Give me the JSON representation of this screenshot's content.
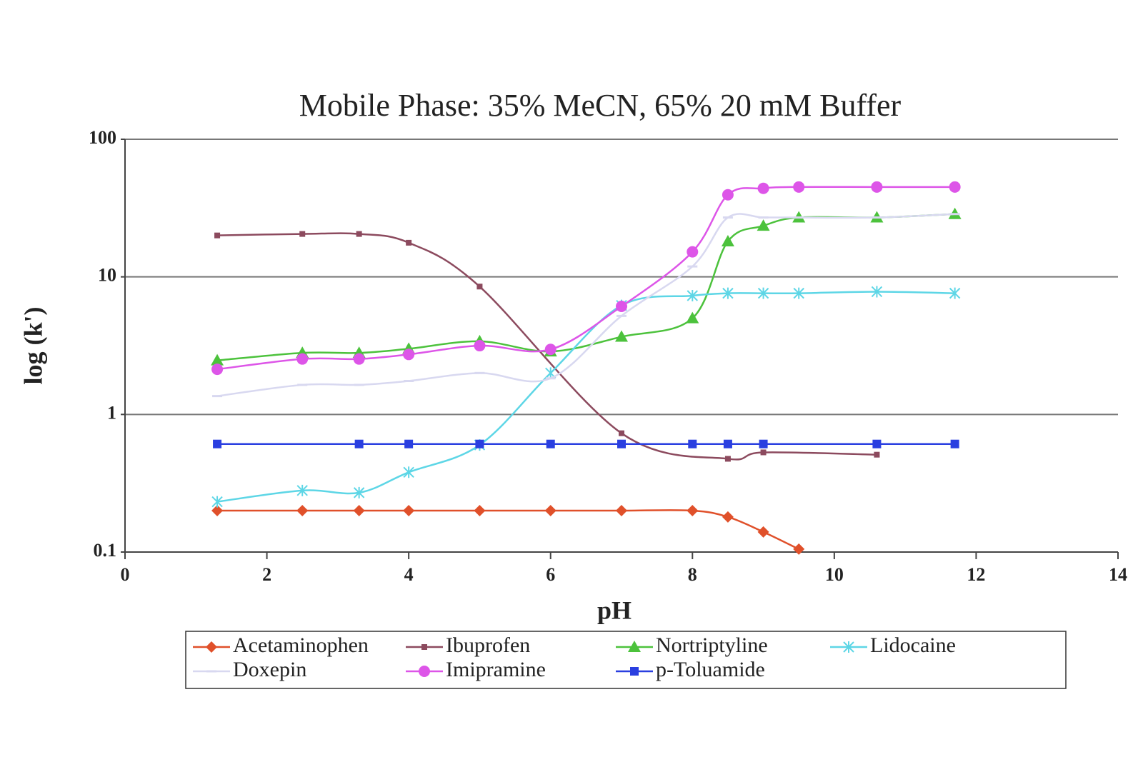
{
  "chart_data": {
    "type": "line",
    "title": "Mobile Phase: 35% MeCN, 65% 20 mM Buffer",
    "x_label": "pH",
    "y_label": "log (k')",
    "xlim": [
      0,
      14
    ],
    "xticks": [
      0,
      2,
      4,
      6,
      8,
      10,
      12,
      14
    ],
    "ylim": [
      0.1,
      100
    ],
    "yticks": [
      0.1,
      1,
      10,
      100
    ],
    "yscale": "log",
    "grid": true,
    "legend": "bottom",
    "series": [
      {
        "name": "Acetaminophen",
        "color": "#e0502a",
        "marker": "diamond",
        "x": [
          1.3,
          2.5,
          3.3,
          4,
          5,
          6,
          7,
          8,
          8.5,
          9,
          9.5
        ],
        "values": [
          0.2,
          0.2,
          0.2,
          0.2,
          0.2,
          0.2,
          0.2,
          0.2,
          0.18,
          0.14,
          0.105
        ]
      },
      {
        "name": "Ibuprofen",
        "color": "#8c4a5e",
        "marker": "square-small",
        "x": [
          1.3,
          2.5,
          3.3,
          4,
          5,
          7,
          8.5,
          9,
          10.6
        ],
        "values": [
          20,
          20.5,
          20.5,
          17.7,
          8.5,
          0.73,
          0.476,
          0.53,
          0.51
        ]
      },
      {
        "name": "Nortriptyline",
        "color": "#4cc23c",
        "marker": "triangle",
        "x": [
          1.3,
          2.5,
          3.3,
          4,
          5,
          6,
          7,
          8,
          8.5,
          9,
          9.5,
          10.6,
          11.7
        ],
        "values": [
          2.47,
          2.8,
          2.8,
          3.0,
          3.4,
          2.87,
          3.67,
          5,
          18.1,
          23.5,
          27,
          27,
          28.6
        ]
      },
      {
        "name": "Lidocaine",
        "color": "#5dd6e6",
        "marker": "cross",
        "x": [
          1.3,
          2.5,
          3.3,
          4,
          5,
          6,
          7,
          8,
          8.5,
          9,
          9.5,
          10.6,
          11.7
        ],
        "values": [
          0.232,
          0.28,
          0.27,
          0.38,
          0.6,
          2.0,
          6.2,
          7.3,
          7.6,
          7.6,
          7.6,
          7.8,
          7.6
        ]
      },
      {
        "name": "Doxepin",
        "color": "#d8d8f0",
        "marker": "dash",
        "x": [
          1.3,
          2.5,
          3.3,
          4,
          5,
          6,
          7,
          8,
          8.5,
          9,
          9.5,
          10.6,
          11.7
        ],
        "values": [
          1.36,
          1.64,
          1.64,
          1.75,
          2.0,
          1.83,
          5.2,
          11.9,
          27,
          27,
          27,
          27,
          28.6
        ]
      },
      {
        "name": "Imipramine",
        "color": "#dd55e8",
        "marker": "circle",
        "x": [
          1.3,
          2.5,
          3.3,
          4,
          5,
          6,
          7,
          8,
          8.5,
          9,
          9.5,
          10.6,
          11.7
        ],
        "values": [
          2.13,
          2.53,
          2.53,
          2.73,
          3.16,
          2.97,
          6.1,
          15.2,
          39.5,
          44,
          45,
          45,
          45
        ]
      },
      {
        "name": "p-Toluamide",
        "color": "#2a3fe0",
        "marker": "square",
        "x": [
          1.3,
          3.3,
          4,
          5,
          6,
          7,
          8,
          8.5,
          9,
          10.6,
          11.7
        ],
        "values": [
          0.61,
          0.61,
          0.61,
          0.61,
          0.61,
          0.61,
          0.61,
          0.61,
          0.61,
          0.61,
          0.61
        ]
      }
    ]
  }
}
